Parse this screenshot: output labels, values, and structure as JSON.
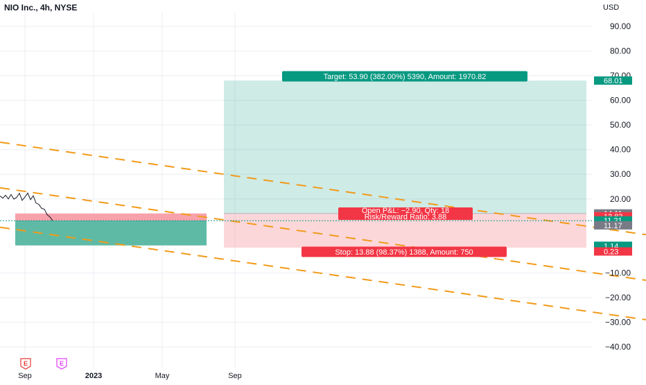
{
  "chart_data": {
    "type": "line",
    "title": "NIO Inc., 4h, NYSE",
    "currency": "USD",
    "y_ticks": [
      90,
      80,
      70,
      60,
      50,
      40,
      30,
      20,
      -10,
      -20,
      -30,
      -40
    ],
    "y_tick_labels": [
      "90.00",
      "80.00",
      "70.00",
      "60.00",
      "50.00",
      "40.00",
      "30.00",
      "20.00",
      "−10.00",
      "−20.00",
      "−30.00",
      "−40.00"
    ],
    "x_ticks": [
      {
        "label": "Sep",
        "x": 36
      },
      {
        "label": "2023",
        "x": 135
      },
      {
        "label": "May",
        "x": 234
      },
      {
        "label": "Sep",
        "x": 339
      }
    ],
    "earnings_markers": [
      {
        "label": "E",
        "color": "#e53935"
      },
      {
        "label": "E",
        "color": "#e040fb"
      }
    ],
    "price_series": [
      {
        "x": 0,
        "y": 21.2
      },
      {
        "x": 4,
        "y": 20.3
      },
      {
        "x": 8,
        "y": 21.5
      },
      {
        "x": 12,
        "y": 20.0
      },
      {
        "x": 16,
        "y": 21.8
      },
      {
        "x": 20,
        "y": 19.9
      },
      {
        "x": 24,
        "y": 20.6
      },
      {
        "x": 28,
        "y": 22.3
      },
      {
        "x": 32,
        "y": 19.4
      },
      {
        "x": 36,
        "y": 20.8
      },
      {
        "x": 40,
        "y": 22.4
      },
      {
        "x": 44,
        "y": 19.7
      },
      {
        "x": 48,
        "y": 21.3
      },
      {
        "x": 52,
        "y": 18.3
      },
      {
        "x": 56,
        "y": 17.8
      },
      {
        "x": 60,
        "y": 16.2
      },
      {
        "x": 64,
        "y": 15.8
      },
      {
        "x": 68,
        "y": 13.6
      },
      {
        "x": 72,
        "y": 12.7
      },
      {
        "x": 76,
        "y": 11.2
      }
    ],
    "trend_lines": [
      {
        "from": {
          "x": 0,
          "y": 43
        },
        "to": {
          "x": 932,
          "y": 5.5
        }
      },
      {
        "from": {
          "x": 0,
          "y": 24.5
        },
        "to": {
          "x": 932,
          "y": -13
        }
      },
      {
        "from": {
          "x": 0,
          "y": 8.5
        },
        "to": {
          "x": 932,
          "y": -29
        }
      }
    ],
    "long_position_small": {
      "x0": 22,
      "x1": 298,
      "target_price": 14.11,
      "entry_price": 11.21,
      "stop_price": 1.14
    },
    "long_position_large": {
      "x0": 323,
      "x1": 846,
      "target_price": 68.01,
      "entry_price": 14.11,
      "stop_price": 0.23,
      "target_label": "Target: 53.90 (382.00%) 5390, Amount: 1970.82",
      "pnl_label": "Open P&L: −2.90, Qty: 18",
      "rr_label": "Risk/Reward Ratio: 3.88",
      "stop_label": "Stop: 13.88 (98.37%) 1388, Amount: 750"
    },
    "current_price": 11.17,
    "price_badges": [
      {
        "label": "68.01",
        "value": 68.01,
        "color": "#089981"
      },
      {
        "label": "14.11",
        "value": 14.11,
        "color": "#787b86"
      },
      {
        "label": "13.83",
        "value": 12.95,
        "color": "#f23645"
      },
      {
        "label": "11.21",
        "value": 11.3,
        "color": "#089981"
      },
      {
        "label": "11.17",
        "value": 9.3,
        "color": "#787b86"
      },
      {
        "label": "1.14",
        "value": 1.0,
        "color": "#089981"
      },
      {
        "label": "0.23",
        "value": -1.3,
        "color": "#f23645"
      }
    ]
  }
}
